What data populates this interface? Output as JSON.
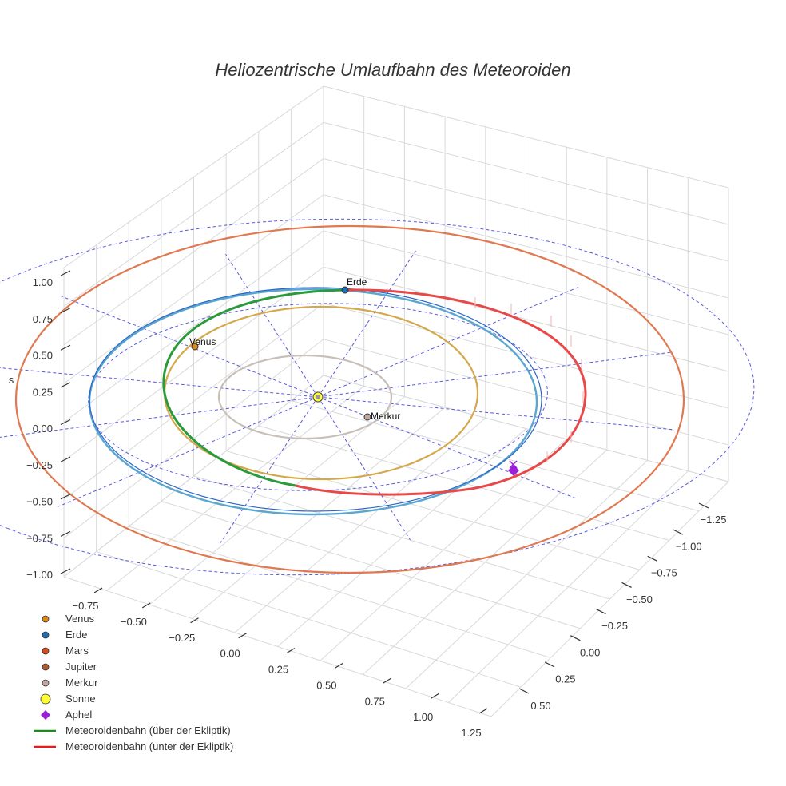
{
  "colors": {
    "grid": "#d9d9d9",
    "ref": "#5a5ae0",
    "venus": "#d4a84b",
    "earth": "#5aa6cf",
    "earth_inner": "#2a66c9",
    "mars": "#e07850",
    "mercury": "#c8c0b8",
    "above": "#2a9a3a",
    "below": "#e84848",
    "aphel": "#9b1fd6",
    "sun": "#ffff33"
  },
  "chart_data": {
    "type": "3d-orbit",
    "title": "Heliozentrische Umlaufbahn des Meteoroiden",
    "axis_z_label": "s",
    "x_ticks": [
      "−1.25",
      "−1.00",
      "−0.75",
      "−0.50",
      "−0.25",
      "0.00",
      "0.25",
      "0.50"
    ],
    "y_ticks": [
      "−0.75",
      "−0.50",
      "−0.25",
      "0.00",
      "0.25",
      "0.50",
      "0.75",
      "1.00",
      "1.25"
    ],
    "z_ticks": [
      "1.00",
      "0.75",
      "0.50",
      "0.25",
      "0.00",
      "−0.25",
      "−0.50",
      "−0.75",
      "−1.00"
    ],
    "planet_labels": [
      {
        "name": "Erde",
        "x": 0.0,
        "y": 1.0
      },
      {
        "name": "Venus",
        "x": -0.72,
        "y": 0.12
      },
      {
        "name": "Merkur",
        "x": 0.3,
        "y": -0.15
      }
    ],
    "legend": [
      {
        "label": "Venus",
        "symbol": "dot",
        "color": "#d98a1c"
      },
      {
        "label": "Erde",
        "symbol": "dot",
        "color": "#1f6fb5"
      },
      {
        "label": "Mars",
        "symbol": "dot",
        "color": "#d94a1c"
      },
      {
        "label": "Jupiter",
        "symbol": "dot",
        "color": "#b05a30"
      },
      {
        "label": "Merkur",
        "symbol": "dot",
        "color": "#c0a8a0"
      },
      {
        "label": "Sonne",
        "symbol": "sun",
        "color": "#ffff33"
      },
      {
        "label": "Aphel",
        "symbol": "diamond",
        "color": "#9b1fd6"
      },
      {
        "label": "Meteoroidenbahn (über der Ekliptik)",
        "symbol": "line",
        "color": "#1f8a1f"
      },
      {
        "label": "Meteoroidenbahn (unter der Ekliptik)",
        "symbol": "line",
        "color": "#e02020"
      }
    ]
  }
}
